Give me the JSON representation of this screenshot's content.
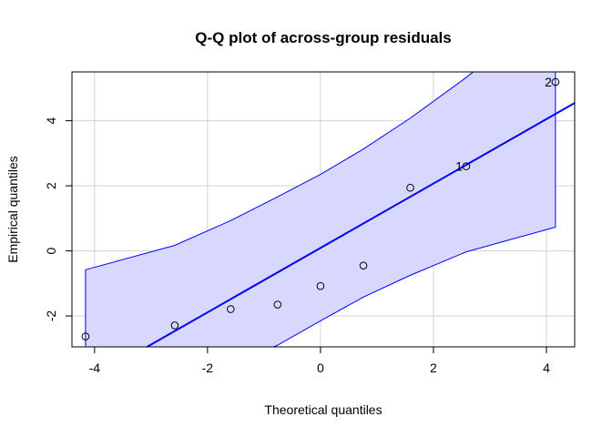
{
  "chart_data": {
    "type": "scatter",
    "title": "Q-Q plot of across-group residuals",
    "xlabel": "Theoretical quantiles",
    "ylabel": "Empirical quantiles",
    "xlim": [
      -4.4,
      4.5
    ],
    "ylim": [
      -2.95,
      5.5
    ],
    "xticks": [
      -4,
      -2,
      0,
      2,
      4
    ],
    "yticks": [
      -2,
      0,
      2,
      4
    ],
    "xtick_labels": [
      "-4",
      "-2",
      "0",
      "2",
      "4"
    ],
    "ytick_labels": [
      "-2",
      "0",
      "2",
      "4"
    ],
    "grid": true,
    "legend": "none",
    "points": [
      {
        "x": -4.16,
        "y": -2.63,
        "label": ""
      },
      {
        "x": -2.58,
        "y": -2.29,
        "label": ""
      },
      {
        "x": -1.59,
        "y": -1.79,
        "label": ""
      },
      {
        "x": -0.76,
        "y": -1.65,
        "label": ""
      },
      {
        "x": 0.0,
        "y": -1.08,
        "label": ""
      },
      {
        "x": 0.76,
        "y": -0.45,
        "label": ""
      },
      {
        "x": 1.59,
        "y": 1.94,
        "label": ""
      },
      {
        "x": 2.58,
        "y": 2.6,
        "label": "1"
      },
      {
        "x": 4.16,
        "y": 5.19,
        "label": "2"
      }
    ],
    "reference_line": {
      "intercept": 0.09,
      "slope": 0.99
    },
    "envelope": {
      "x": [
        -4.16,
        -2.58,
        -1.59,
        -0.76,
        0.0,
        0.76,
        1.59,
        2.58,
        4.16
      ],
      "upper": [
        -0.58,
        0.17,
        0.93,
        1.66,
        2.35,
        3.13,
        4.08,
        5.33,
        7.5
      ],
      "lower": [
        -3.9,
        -3.5,
        -3.45,
        -2.9,
        -2.15,
        -1.42,
        -0.75,
        -0.03,
        0.73
      ]
    },
    "colors": {
      "line": "#0000ff",
      "band_fill": "#d8d8ff",
      "band_edge": "#0000ff",
      "points": "#000000",
      "grid": "#d3d3d3"
    }
  }
}
